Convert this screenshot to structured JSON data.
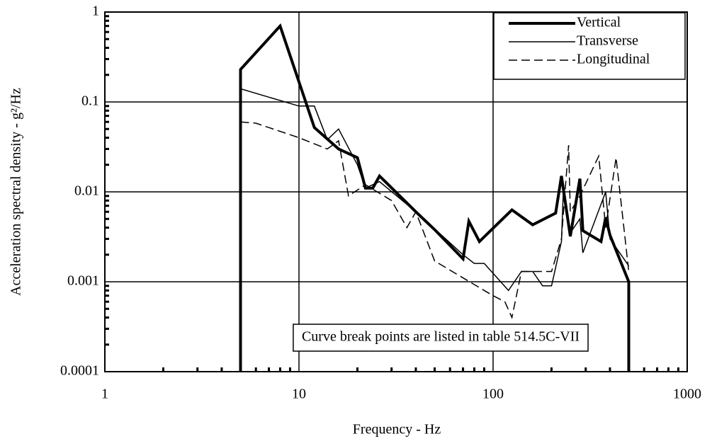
{
  "chart_data": {
    "type": "line",
    "xlabel": "Frequency - Hz",
    "ylabel": "Acceleration spectral density - g²/Hz",
    "xscale": "log",
    "yscale": "log",
    "grid": true,
    "legend": "upper right",
    "xlim": [
      1,
      1000
    ],
    "ylim": [
      0.0001,
      1
    ],
    "xticks": [
      1,
      10,
      100,
      1000
    ],
    "yticks": [
      0.0001,
      0.001,
      0.01,
      0.1,
      1
    ],
    "xminorticks": [
      2,
      3,
      4,
      5,
      6,
      7,
      8,
      9,
      20,
      30,
      40,
      50,
      60,
      70,
      80,
      90,
      200,
      300,
      400,
      500,
      600,
      700,
      800,
      900
    ],
    "yminorticks": [
      0.0002,
      0.0003,
      0.0004,
      0.0005,
      0.0006,
      0.0007,
      0.0008,
      0.0009,
      0.002,
      0.003,
      0.004,
      0.005,
      0.006,
      0.007,
      0.008,
      0.009,
      0.02,
      0.03,
      0.04,
      0.05,
      0.06,
      0.07,
      0.08,
      0.09,
      0.2,
      0.3,
      0.4,
      0.5,
      0.6,
      0.7,
      0.8,
      0.9
    ],
    "annotation": "Curve break points are listed in table 514.5C-VII",
    "series": [
      {
        "name": "Vertical",
        "color": "#000000",
        "line_width": 4,
        "dash": "solid",
        "x": [
          5,
          5,
          8,
          12,
          16,
          20,
          22,
          24,
          26,
          40,
          50,
          70,
          75,
          85,
          125,
          160,
          210,
          225,
          250,
          280,
          290,
          360,
          380,
          400,
          500,
          500
        ],
        "values": [
          0.0001,
          0.23,
          0.7,
          0.052,
          0.03,
          0.024,
          0.011,
          0.011,
          0.015,
          0.006,
          0.0038,
          0.0018,
          0.0047,
          0.0028,
          0.0063,
          0.0043,
          0.0058,
          0.015,
          0.0032,
          0.014,
          0.0037,
          0.0028,
          0.0052,
          0.0033,
          0.001,
          0.0001
        ]
      },
      {
        "name": "Transverse",
        "color": "#000000",
        "line_width": 1.5,
        "dash": "solid",
        "x": [
          5,
          10,
          12,
          14,
          16,
          20,
          22,
          26,
          40,
          70,
          80,
          90,
          120,
          140,
          160,
          180,
          200,
          225,
          230,
          250,
          280,
          290,
          380,
          400,
          500
        ],
        "values": [
          0.14,
          0.09,
          0.09,
          0.038,
          0.05,
          0.02,
          0.011,
          0.013,
          0.006,
          0.002,
          0.0016,
          0.0016,
          0.0008,
          0.0013,
          0.0013,
          0.0009,
          0.0009,
          0.0028,
          0.01,
          0.0035,
          0.005,
          0.0021,
          0.01,
          0.003,
          0.0015
        ]
      },
      {
        "name": "Longitudinal",
        "color": "#000000",
        "line_width": 1.5,
        "dash": "dashed",
        "x": [
          5,
          6,
          10,
          14,
          16,
          18,
          22,
          30,
          36,
          40,
          50,
          100,
          115,
          125,
          140,
          200,
          225,
          245,
          250,
          280,
          350,
          380,
          430,
          500
        ],
        "values": [
          0.06,
          0.058,
          0.04,
          0.03,
          0.037,
          0.009,
          0.012,
          0.008,
          0.004,
          0.006,
          0.0017,
          0.0007,
          0.0006,
          0.0004,
          0.0013,
          0.0013,
          0.003,
          0.033,
          0.006,
          0.009,
          0.025,
          0.004,
          0.024,
          0.0013
        ]
      }
    ]
  }
}
